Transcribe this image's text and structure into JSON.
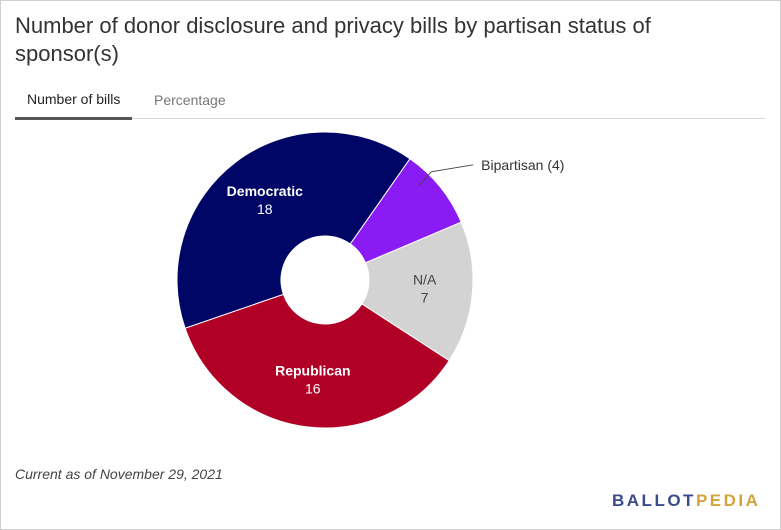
{
  "title": "Number of donor disclosure and privacy bills by partisan status of sponsor(s)",
  "tabs": [
    {
      "label": "Number of bills",
      "active": true
    },
    {
      "label": "Percentage",
      "active": false
    }
  ],
  "chart_data": {
    "type": "pie",
    "donut": true,
    "start_angle_deg": 35,
    "slices": [
      {
        "label": "Bipartisan",
        "value": 4,
        "color": "#8a1bf4",
        "label_style": "callout",
        "display": "Bipartisan (4)"
      },
      {
        "label": "N/A",
        "value": 7,
        "color": "#d3d3d3",
        "label_style": "inside-dark"
      },
      {
        "label": "Republican",
        "value": 16,
        "color": "#b00026",
        "label_style": "inside-light"
      },
      {
        "label": "Democratic",
        "value": 18,
        "color": "#000665",
        "label_style": "inside-light"
      }
    ]
  },
  "footnote": "Current as of November 29, 2021",
  "logo": {
    "part1": "BALLOT",
    "part2": "PEDIA"
  }
}
